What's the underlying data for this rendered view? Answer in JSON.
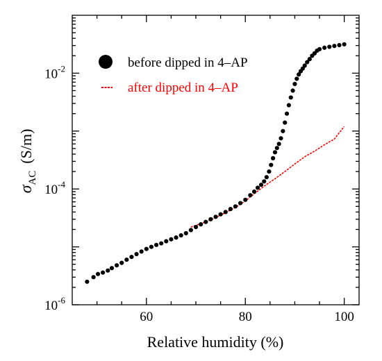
{
  "chart_data": {
    "type": "scatter",
    "title": "",
    "xlabel": "Relative humidity (%)",
    "ylabel": "σ",
    "ylabel_subscript": "AC",
    "ylabel_unit": "(S/m)",
    "xlim": [
      45,
      103
    ],
    "ylim": [
      1e-06,
      0.1
    ],
    "y_scale": "log",
    "grid": false,
    "legend_position": "top-left",
    "x_ticks": [
      60,
      80,
      100
    ],
    "x_tick_labels": [
      "60",
      "80",
      "100"
    ],
    "y_ticks": [
      1e-06,
      0.0001,
      0.01
    ],
    "y_tick_labels": [
      {
        "base": "10",
        "exp": "-6"
      },
      {
        "base": "10",
        "exp": "-4"
      },
      {
        "base": "10",
        "exp": "-2"
      }
    ],
    "series": [
      {
        "name": "before dipped in 4–AP",
        "color": "#000000",
        "marker": "circle",
        "x": [
          48.0,
          49.3,
          50.2,
          51.2,
          52.2,
          53.0,
          54.0,
          55.0,
          56.0,
          57.0,
          58.0,
          59.0,
          60.0,
          61.0,
          62.0,
          63.0,
          64.0,
          65.0,
          66.0,
          67.0,
          68.0,
          69.0,
          70.0,
          71.0,
          72.0,
          73.0,
          74.0,
          75.0,
          76.0,
          77.0,
          78.0,
          79.0,
          80.0,
          81.0,
          81.8,
          82.5,
          83.2,
          83.8,
          84.3,
          84.8,
          85.2,
          85.6,
          86.0,
          86.4,
          86.8,
          87.2,
          87.6,
          88.0,
          88.4,
          88.8,
          89.2,
          89.6,
          90.0,
          90.4,
          90.8,
          91.2,
          91.6,
          92.0,
          92.5,
          93.0,
          93.5,
          94.0,
          94.5,
          95.0,
          96.0,
          97.0,
          98.0,
          99.0,
          100.0
        ],
        "y": [
          2.5e-06,
          3e-06,
          3.4e-06,
          3.6e-06,
          3.9e-06,
          4.3e-06,
          4.8e-06,
          5.3e-06,
          6e-06,
          6.7e-06,
          7.5e-06,
          8.3e-06,
          9.2e-06,
          1e-05,
          1.08e-05,
          1.15e-05,
          1.25e-05,
          1.35e-05,
          1.45e-05,
          1.58e-05,
          1.72e-05,
          1.95e-05,
          2.2e-05,
          2.45e-05,
          2.7e-05,
          3e-05,
          3.3e-05,
          3.65e-05,
          4e-05,
          4.5e-05,
          5e-05,
          5.7e-05,
          6.5e-05,
          7.8e-05,
          9e-05,
          0.000105,
          0.000118,
          0.000135,
          0.00016,
          0.0002,
          0.00026,
          0.00034,
          0.00043,
          0.00051,
          0.0006,
          0.00075,
          0.001,
          0.0014,
          0.002,
          0.0028,
          0.0038,
          0.005,
          0.0065,
          0.008,
          0.0095,
          0.0108,
          0.012,
          0.0135,
          0.0155,
          0.0175,
          0.02,
          0.022,
          0.0245,
          0.026,
          0.0275,
          0.0285,
          0.0295,
          0.0305,
          0.0315
        ]
      },
      {
        "name": "after dipped in 4–AP",
        "color": "#ff0000",
        "marker": "line",
        "x": [
          69,
          70,
          72,
          74,
          76,
          78,
          80,
          82,
          84,
          86,
          88,
          90,
          92,
          94,
          96,
          98,
          100
        ],
        "y": [
          2.2e-05,
          2.35e-05,
          2.7e-05,
          3.2e-05,
          3.9e-05,
          4.8e-05,
          6.2e-05,
          8.5e-05,
          0.000115,
          0.00015,
          0.0002,
          0.00027,
          0.00036,
          0.00045,
          0.00058,
          0.00073,
          0.0012
        ]
      }
    ]
  }
}
